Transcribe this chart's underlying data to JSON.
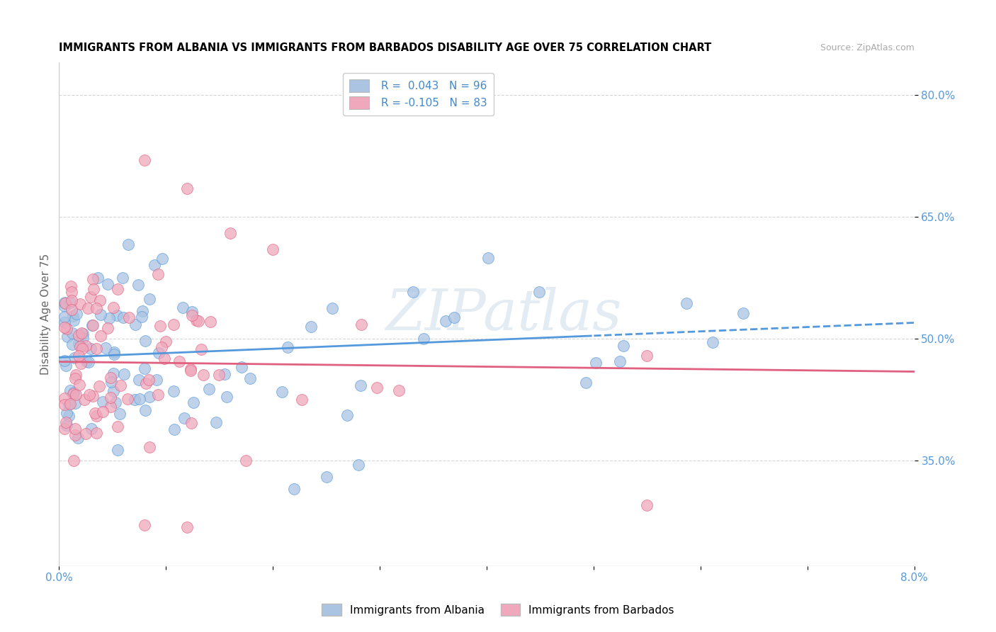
{
  "title": "IMMIGRANTS FROM ALBANIA VS IMMIGRANTS FROM BARBADOS DISABILITY AGE OVER 75 CORRELATION CHART",
  "source": "Source: ZipAtlas.com",
  "ylabel": "Disability Age Over 75",
  "xlim": [
    0.0,
    0.08
  ],
  "ylim": [
    0.22,
    0.84
  ],
  "xticks": [
    0.0,
    0.01,
    0.02,
    0.03,
    0.04,
    0.05,
    0.06,
    0.07,
    0.08
  ],
  "xtick_labels": [
    "0.0%",
    "",
    "",
    "",
    "",
    "",
    "",
    "",
    "8.0%"
  ],
  "ytick_positions": [
    0.35,
    0.5,
    0.65,
    0.8
  ],
  "ytick_labels": [
    "35.0%",
    "50.0%",
    "65.0%",
    "80.0%"
  ],
  "legend_label_albania": "Immigrants from Albania",
  "legend_label_barbados": "Immigrants from Barbados",
  "R_albania": 0.043,
  "N_albania": 96,
  "R_barbados": -0.105,
  "N_barbados": 83,
  "color_albania": "#aac4e2",
  "color_barbados": "#f0a8bc",
  "trendline_albania_color": "#5599dd",
  "trendline_barbados_color": "#e06080",
  "watermark": "ZIPatlas",
  "albania_seed": 101,
  "barbados_seed": 202
}
